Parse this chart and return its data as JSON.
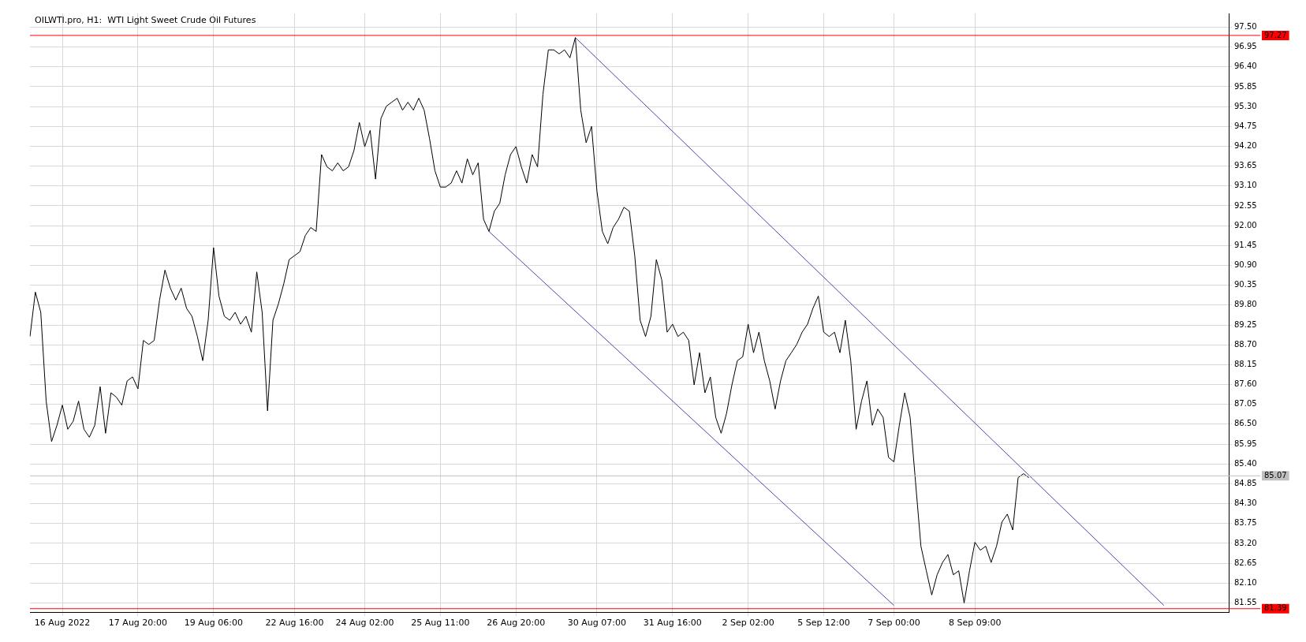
{
  "chart_data": {
    "type": "line",
    "title": "OILWTI.pro, H1:  WTI Light Sweet Crude Oil Futures",
    "categories": [
      null,
      null,
      null,
      null,
      null,
      null,
      "16 Aug 2022",
      null,
      null,
      null,
      null,
      null,
      null,
      null,
      null,
      null,
      null,
      null,
      null,
      null,
      "17 Aug 20:00",
      null,
      null,
      null,
      null,
      null,
      null,
      null,
      null,
      null,
      null,
      null,
      null,
      null,
      "19 Aug 06:00",
      null,
      null,
      null,
      null,
      null,
      null,
      null,
      null,
      null,
      null,
      null,
      null,
      null,
      null,
      "22 Aug 16:00",
      null,
      null,
      null,
      null,
      null,
      null,
      null,
      null,
      null,
      null,
      null,
      null,
      "24 Aug 02:00",
      null,
      null,
      null,
      null,
      null,
      null,
      null,
      null,
      null,
      null,
      null,
      null,
      null,
      "25 Aug 11:00",
      null,
      null,
      null,
      null,
      null,
      null,
      null,
      null,
      null,
      null,
      null,
      null,
      null,
      "26 Aug 20:00",
      null,
      null,
      null,
      null,
      null,
      null,
      null,
      null,
      null,
      null,
      null,
      null,
      null,
      null,
      "30 Aug 07:00",
      null,
      null,
      null,
      null,
      null,
      null,
      null,
      null,
      null,
      null,
      null,
      null,
      null,
      "31 Aug 16:00",
      null,
      null,
      null,
      null,
      null,
      null,
      null,
      null,
      null,
      null,
      null,
      null,
      null,
      "2 Sep 02:00",
      null,
      null,
      null,
      null,
      null,
      null,
      null,
      null,
      null,
      null,
      null,
      null,
      null,
      "5 Sep 12:00",
      null,
      null,
      null,
      null,
      null,
      null,
      null,
      null,
      null,
      null,
      null,
      null,
      "7 Sep 00:00",
      null,
      null,
      null,
      null,
      null,
      null,
      null,
      null,
      null,
      null,
      null,
      null,
      null,
      null,
      "8 Sep 09:00",
      null,
      null,
      null,
      null,
      null,
      null,
      null,
      null,
      null,
      null,
      null,
      null,
      null,
      null,
      null,
      null,
      null,
      null,
      null,
      null,
      null,
      null,
      null,
      null,
      null,
      null,
      null,
      null,
      null,
      null,
      null,
      null,
      null,
      null,
      null,
      null,
      null,
      null,
      null,
      null,
      null,
      null,
      null,
      null,
      null,
      null,
      null
    ],
    "ylim": [
      81.28,
      97.88
    ],
    "yticks": [
      {
        "value": 81.55,
        "label": "81.55"
      },
      {
        "value": 82.1,
        "label": "82.10"
      },
      {
        "value": 82.65,
        "label": "82.65"
      },
      {
        "value": 83.2,
        "label": "83.20"
      },
      {
        "value": 83.75,
        "label": "83.75"
      },
      {
        "value": 84.3,
        "label": "84.30"
      },
      {
        "value": 84.85,
        "label": "84.85"
      },
      {
        "value": 85.4,
        "label": "85.40"
      },
      {
        "value": 85.95,
        "label": "85.95"
      },
      {
        "value": 86.5,
        "label": "86.50"
      },
      {
        "value": 87.05,
        "label": "87.05"
      },
      {
        "value": 87.6,
        "label": "87.60"
      },
      {
        "value": 88.15,
        "label": "88.15"
      },
      {
        "value": 88.7,
        "label": "88.70"
      },
      {
        "value": 89.25,
        "label": "89.25"
      },
      {
        "value": 89.8,
        "label": "89.80"
      },
      {
        "value": 90.35,
        "label": "90.35"
      },
      {
        "value": 90.9,
        "label": "90.90"
      },
      {
        "value": 91.45,
        "label": "91.45"
      },
      {
        "value": 92.0,
        "label": "92.00"
      },
      {
        "value": 92.55,
        "label": "92.55"
      },
      {
        "value": 93.1,
        "label": "93.10"
      },
      {
        "value": 93.65,
        "label": "93.65"
      },
      {
        "value": 94.2,
        "label": "94.20"
      },
      {
        "value": 94.75,
        "label": "94.75"
      },
      {
        "value": 95.3,
        "label": "95.30"
      },
      {
        "value": 95.85,
        "label": "95.85"
      },
      {
        "value": 96.4,
        "label": "96.40"
      },
      {
        "value": 96.95,
        "label": "96.95"
      },
      {
        "value": 97.5,
        "label": "97.50"
      }
    ],
    "grid": true,
    "legend": false,
    "marker": "none",
    "line_style": "solid",
    "ref_lines": [
      {
        "axis": "y",
        "value": 97.27,
        "label": "97.27",
        "color": "#ff0000"
      },
      {
        "axis": "y",
        "value": 81.39,
        "label": "81.39",
        "color": "#ff0000"
      },
      {
        "axis": "y",
        "value": 85.07,
        "label": "85.07",
        "color": "#c0c0c0"
      }
    ],
    "series": [
      {
        "color": "#000000",
        "values": [
          88.93,
          90.16,
          89.6,
          87.14,
          86.02,
          86.47,
          87.03,
          86.36,
          86.58,
          87.14,
          86.36,
          86.14,
          86.47,
          87.54,
          86.25,
          87.37,
          87.25,
          87.03,
          87.7,
          87.81,
          87.48,
          88.82,
          88.71,
          88.82,
          89.94,
          90.77,
          90.27,
          89.94,
          90.27,
          89.71,
          89.49,
          88.93,
          88.26,
          89.38,
          91.39,
          90.05,
          89.49,
          89.38,
          89.6,
          89.27,
          89.49,
          89.05,
          90.72,
          89.6,
          86.87,
          89.38,
          89.83,
          90.39,
          91.06,
          91.17,
          91.28,
          91.73,
          91.95,
          91.84,
          93.97,
          93.63,
          93.52,
          93.74,
          93.52,
          93.63,
          94.08,
          94.86,
          94.19,
          94.64,
          93.29,
          94.97,
          95.31,
          95.42,
          95.53,
          95.2,
          95.42,
          95.2,
          95.53,
          95.2,
          94.41,
          93.52,
          93.07,
          93.07,
          93.18,
          93.52,
          93.18,
          93.85,
          93.41,
          93.74,
          92.18,
          91.84,
          92.4,
          92.62,
          93.41,
          93.97,
          94.19,
          93.63,
          93.18,
          93.97,
          93.63,
          95.64,
          96.87,
          96.87,
          96.76,
          96.87,
          96.65,
          97.21,
          95.2,
          94.3,
          94.75,
          92.96,
          91.84,
          91.5,
          91.95,
          92.18,
          92.51,
          92.4,
          91.17,
          89.38,
          88.93,
          89.49,
          91.06,
          90.5,
          89.05,
          89.27,
          88.93,
          89.05,
          88.82,
          87.59,
          88.48,
          87.37,
          87.81,
          86.69,
          86.25,
          86.8,
          87.59,
          88.26,
          88.37,
          89.27,
          88.48,
          89.05,
          88.26,
          87.7,
          86.92,
          87.7,
          88.26,
          88.48,
          88.71,
          89.05,
          89.27,
          89.71,
          90.05,
          89.05,
          88.93,
          89.05,
          88.48,
          89.38,
          88.26,
          86.36,
          87.14,
          87.7,
          86.47,
          86.92,
          86.69,
          85.58,
          85.46,
          86.47,
          87.37,
          86.69,
          84.9,
          83.12,
          82.44,
          81.77,
          82.33,
          82.67,
          82.89,
          82.33,
          82.44,
          81.55,
          82.44,
          83.23,
          83.01,
          83.12,
          82.67,
          83.12,
          83.79,
          84.01,
          83.57,
          85.02,
          85.13,
          85.02,
          null,
          null,
          null,
          null,
          null,
          null,
          null,
          null,
          null,
          null,
          null,
          null,
          null,
          null,
          null,
          null,
          null,
          null,
          null,
          null,
          null,
          null,
          null,
          null,
          null,
          null,
          null,
          null,
          null,
          null,
          null,
          null,
          null,
          null,
          null,
          null,
          null
        ]
      },
      {
        "type": "line",
        "color": "#4848b0",
        "values": [
          null,
          null,
          null,
          null,
          null,
          null,
          null,
          null,
          null,
          null,
          null,
          null,
          null,
          null,
          null,
          null,
          null,
          null,
          null,
          null,
          null,
          null,
          null,
          null,
          null,
          null,
          null,
          null,
          null,
          null,
          null,
          null,
          null,
          null,
          null,
          null,
          null,
          null,
          null,
          null,
          null,
          null,
          null,
          null,
          null,
          null,
          null,
          null,
          null,
          null,
          null,
          null,
          null,
          null,
          null,
          null,
          null,
          null,
          null,
          null,
          null,
          null,
          null,
          null,
          null,
          null,
          null,
          null,
          null,
          null,
          null,
          null,
          null,
          null,
          null,
          null,
          null,
          null,
          null,
          null,
          null,
          null,
          null,
          null,
          null,
          null,
          null,
          null,
          null,
          null,
          null,
          null,
          null,
          null,
          null,
          null,
          null,
          null,
          null,
          null,
          null,
          97.21,
          null,
          null,
          null,
          null,
          null,
          null,
          null,
          null,
          null,
          null,
          null,
          null,
          null,
          null,
          null,
          null,
          null,
          null,
          null,
          null,
          null,
          null,
          null,
          null,
          null,
          null,
          null,
          null,
          null,
          null,
          null,
          null,
          null,
          null,
          null,
          null,
          null,
          null,
          null,
          null,
          null,
          null,
          null,
          null,
          null,
          null,
          null,
          null,
          null,
          null,
          null,
          null,
          null,
          null,
          null,
          null,
          null,
          null,
          null,
          null,
          null,
          null,
          null,
          null,
          null,
          null,
          null,
          null,
          null,
          null,
          null,
          null,
          null,
          null,
          null,
          null,
          null,
          null,
          null,
          null,
          null,
          null,
          null,
          null,
          null,
          null,
          null,
          null,
          null,
          null,
          null,
          null,
          null,
          null,
          null,
          null,
          null,
          null,
          null,
          null,
          null,
          null,
          null,
          null,
          null,
          null,
          null,
          null,
          81.48,
          null,
          null,
          null,
          null,
          null,
          null,
          null,
          null,
          null,
          null,
          null,
          null
        ]
      },
      {
        "type": "line",
        "color": "#4848b0",
        "values": [
          null,
          null,
          null,
          null,
          null,
          null,
          null,
          null,
          null,
          null,
          null,
          null,
          null,
          null,
          null,
          null,
          null,
          null,
          null,
          null,
          null,
          null,
          null,
          null,
          null,
          null,
          null,
          null,
          null,
          null,
          null,
          null,
          null,
          null,
          null,
          null,
          null,
          null,
          null,
          null,
          null,
          null,
          null,
          null,
          null,
          null,
          null,
          null,
          null,
          null,
          null,
          null,
          null,
          null,
          null,
          null,
          null,
          null,
          null,
          null,
          null,
          null,
          null,
          null,
          null,
          null,
          null,
          null,
          null,
          null,
          null,
          null,
          null,
          null,
          null,
          null,
          null,
          null,
          null,
          null,
          null,
          null,
          null,
          null,
          null,
          91.84,
          null,
          null,
          null,
          null,
          null,
          null,
          null,
          null,
          null,
          null,
          null,
          null,
          null,
          null,
          null,
          null,
          null,
          null,
          null,
          null,
          null,
          null,
          null,
          null,
          null,
          null,
          null,
          null,
          null,
          null,
          null,
          null,
          null,
          null,
          null,
          null,
          null,
          null,
          null,
          null,
          null,
          null,
          null,
          null,
          null,
          null,
          null,
          null,
          null,
          null,
          null,
          null,
          null,
          null,
          null,
          null,
          null,
          null,
          null,
          null,
          null,
          null,
          null,
          null,
          null,
          null,
          null,
          null,
          null,
          null,
          null,
          null,
          null,
          null,
          81.48,
          null,
          null,
          null,
          null,
          null,
          null,
          null,
          null,
          null,
          null,
          null,
          null,
          null,
          null,
          null,
          null,
          null,
          null,
          null,
          null,
          null,
          null,
          null,
          null,
          null,
          null,
          null,
          null,
          null,
          null,
          null,
          null,
          null,
          null,
          null,
          null,
          null,
          null,
          null,
          null,
          null,
          null,
          null,
          null,
          null,
          null,
          null,
          null,
          null,
          null,
          null,
          null,
          null,
          null,
          null,
          null,
          null,
          null,
          null,
          null,
          null,
          null
        ]
      }
    ]
  }
}
